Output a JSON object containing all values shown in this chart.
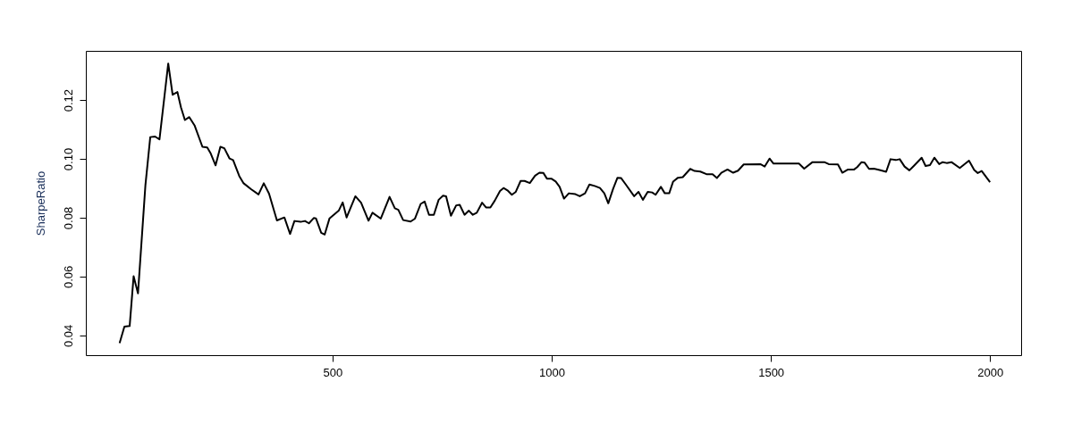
{
  "chart_data": {
    "type": "line",
    "ylabel": "SharpeRatio",
    "x": [
      14,
      25,
      37,
      46,
      56,
      73,
      84,
      95,
      105,
      125,
      135,
      146,
      154,
      163,
      173,
      185,
      203,
      214,
      222,
      233,
      244,
      253,
      265,
      273,
      287,
      297,
      314,
      331,
      343,
      355,
      373,
      390,
      403,
      413,
      427,
      437,
      446,
      457,
      462,
      474,
      482,
      493,
      514,
      523,
      532,
      552,
      565,
      582,
      591,
      610,
      630,
      642,
      650,
      661,
      678,
      688,
      701,
      710,
      720,
      731,
      742,
      752,
      759,
      770,
      782,
      790,
      801,
      811,
      820,
      829,
      841,
      850,
      860,
      870,
      882,
      890,
      899,
      909,
      918,
      929,
      938,
      950,
      962,
      972,
      981,
      989,
      999,
      1009,
      1018,
      1028,
      1039,
      1054,
      1064,
      1076,
      1086,
      1098,
      1110,
      1120,
      1129,
      1140,
      1150,
      1158,
      1169,
      1188,
      1198,
      1208,
      1219,
      1229,
      1237,
      1249,
      1258,
      1268,
      1277,
      1288,
      1299,
      1316,
      1326,
      1339,
      1353,
      1367,
      1377,
      1387,
      1401,
      1414,
      1425,
      1438,
      1476,
      1486,
      1497,
      1506,
      1564,
      1576,
      1595,
      1622,
      1632,
      1653,
      1663,
      1676,
      1690,
      1697,
      1707,
      1714,
      1724,
      1735,
      1748,
      1763,
      1773,
      1785,
      1794,
      1805,
      1816,
      1826,
      1844,
      1853,
      1863,
      1873,
      1884,
      1892,
      1901,
      1912,
      1931,
      1952,
      1964,
      1972,
      1981,
      2000
    ],
    "series": [
      {
        "color": "#000000",
        "values": [
          0.0374,
          0.043,
          0.0432,
          0.0601,
          0.0543,
          0.0912,
          0.1074,
          0.1076,
          0.1066,
          0.1324,
          0.1218,
          0.1227,
          0.1175,
          0.1132,
          0.1142,
          0.1114,
          0.1041,
          0.1039,
          0.1018,
          0.0978,
          0.1041,
          0.1036,
          0.1001,
          0.0996,
          0.0942,
          0.0917,
          0.0897,
          0.0879,
          0.0917,
          0.0882,
          0.0791,
          0.0801,
          0.0745,
          0.0789,
          0.0786,
          0.0789,
          0.0781,
          0.0799,
          0.0798,
          0.0749,
          0.0743,
          0.0798,
          0.0824,
          0.0852,
          0.0801,
          0.0873,
          0.0851,
          0.079,
          0.0817,
          0.0797,
          0.0871,
          0.0832,
          0.0827,
          0.0792,
          0.0787,
          0.0797,
          0.0847,
          0.0855,
          0.081,
          0.081,
          0.0861,
          0.0875,
          0.0873,
          0.0807,
          0.0842,
          0.0844,
          0.081,
          0.0824,
          0.081,
          0.0817,
          0.0851,
          0.0835,
          0.0835,
          0.0858,
          0.0891,
          0.0901,
          0.0893,
          0.0878,
          0.0888,
          0.0925,
          0.0925,
          0.0918,
          0.0943,
          0.0953,
          0.0952,
          0.0933,
          0.0933,
          0.0923,
          0.0905,
          0.0865,
          0.0883,
          0.088,
          0.0873,
          0.0883,
          0.0913,
          0.0908,
          0.0901,
          0.0883,
          0.0849,
          0.0898,
          0.0936,
          0.0935,
          0.0913,
          0.0873,
          0.0888,
          0.0861,
          0.0888,
          0.0886,
          0.0878,
          0.0905,
          0.0883,
          0.0883,
          0.0923,
          0.0936,
          0.0938,
          0.0966,
          0.0959,
          0.0957,
          0.0948,
          0.0948,
          0.0935,
          0.0953,
          0.0964,
          0.0953,
          0.096,
          0.0981,
          0.0982,
          0.0974,
          0.1001,
          0.0984,
          0.0984,
          0.0967,
          0.0989,
          0.0989,
          0.0982,
          0.0981,
          0.0953,
          0.0964,
          0.0964,
          0.0972,
          0.0989,
          0.0987,
          0.0966,
          0.0967,
          0.0962,
          0.0956,
          0.0999,
          0.0996,
          0.0999,
          0.0974,
          0.0961,
          0.0976,
          0.1004,
          0.0976,
          0.0979,
          0.1004,
          0.0982,
          0.0989,
          0.0986,
          0.0989,
          0.0969,
          0.0994,
          0.0962,
          0.0952,
          0.0959,
          0.0921
        ]
      }
    ],
    "xlim": [
      -63,
      2071
    ],
    "ylim": [
      0.0333,
      0.1367
    ],
    "xticks": [
      500,
      1000,
      1500,
      2000
    ],
    "yticks": [
      0.04,
      0.06,
      0.08,
      {
        "value": 0.1,
        "label": "0.10"
      },
      0.12
    ],
    "grid": false,
    "marker": "none",
    "line_style": "solid"
  }
}
